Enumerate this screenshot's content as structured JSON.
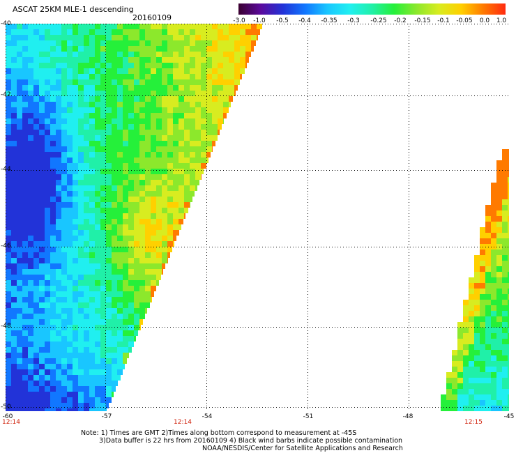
{
  "header": {
    "title": "ASCAT 25KM MLE-1 descending",
    "date": "20160109"
  },
  "colorbar": {
    "labels": [
      "-3.0",
      "-1.0",
      "-0.5",
      "-0.4",
      "-0.35",
      "-0.3",
      "-0.25",
      "-0.2",
      "-0.15",
      "-0.1",
      "-0.05",
      "0.0",
      "1.0"
    ],
    "colors": [
      "#3a0030",
      "#5b0a9c",
      "#2233d8",
      "#1177ff",
      "#19c6ff",
      "#20eff0",
      "#20f0a8",
      "#25f03a",
      "#8ce82c",
      "#d8ec20",
      "#ffd000",
      "#ff7a00",
      "#ff2a10"
    ]
  },
  "axes": {
    "lat_labels": [
      "-40",
      "-42",
      "-44",
      "-46",
      "-48",
      "-50"
    ],
    "lon_labels": [
      "-60",
      "-57",
      "-54",
      "-51",
      "-48",
      "-45"
    ],
    "time_labels": [
      "12:14",
      "12:14",
      "12:15"
    ]
  },
  "notes": [
    "Note: 1) Times are GMT 2)Times along bottom correspond to measurement at -45S",
    "3)Data buffer is 22 hrs from 20160109 4) Black wind barbs indicate possible contamination",
    "NOAA/NESDIS/Center for Satellite Applications and Research"
  ],
  "map_data": {
    "lat_range": [
      -50,
      -40
    ],
    "lon_range": [
      -60,
      -45
    ],
    "swaths": [
      "west",
      "east"
    ]
  }
}
